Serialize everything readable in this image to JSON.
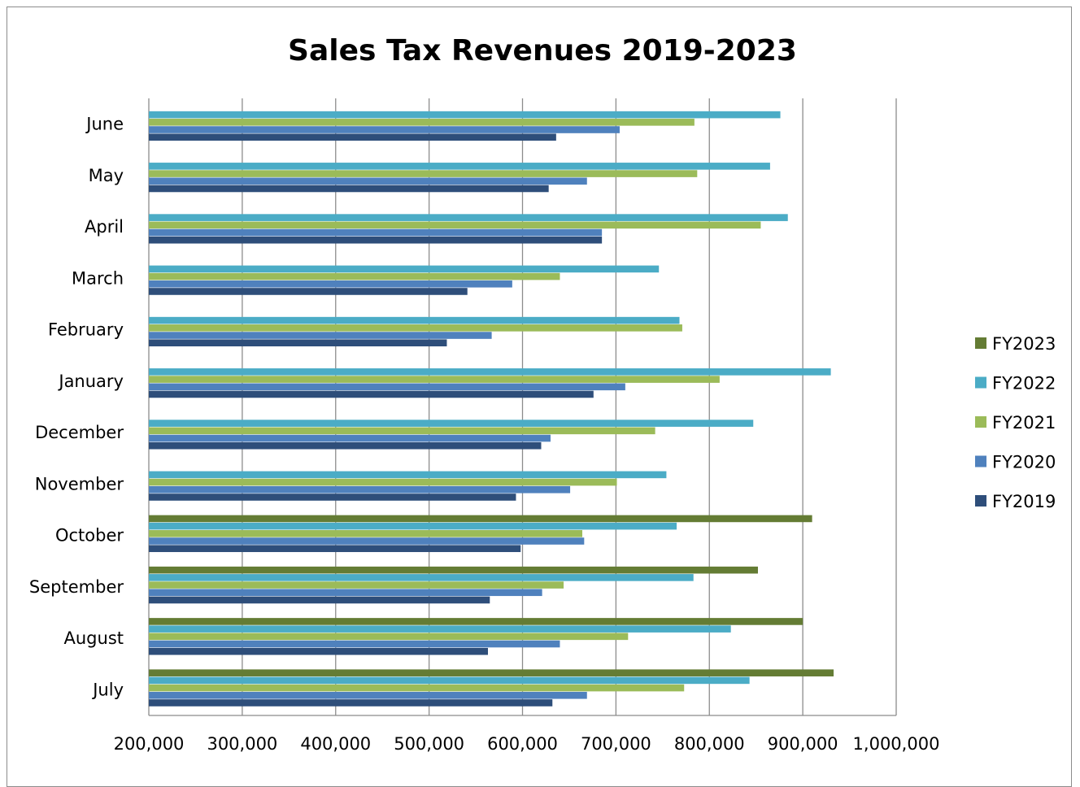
{
  "chart_data": {
    "type": "bar",
    "orientation": "horizontal",
    "title": "Sales Tax Revenues 2019-2023",
    "categories": [
      "July",
      "August",
      "September",
      "October",
      "November",
      "December",
      "January",
      "February",
      "March",
      "April",
      "May",
      "June"
    ],
    "xlim": [
      200000,
      1000000
    ],
    "xticks": [
      "200,000",
      "300,000",
      "400,000",
      "500,000",
      "600,000",
      "700,000",
      "800,000",
      "900,000",
      "1,000,000"
    ],
    "xtick_values": [
      200000,
      300000,
      400000,
      500000,
      600000,
      700000,
      800000,
      900000,
      1000000
    ],
    "grid": true,
    "legend_position": "right",
    "series": [
      {
        "name": "FY2019",
        "color": "#2E4E7A",
        "values": [
          632000,
          563000,
          565000,
          598000,
          593000,
          620000,
          676000,
          519000,
          541000,
          685000,
          628000,
          636000
        ]
      },
      {
        "name": "FY2020",
        "color": "#4F81BD",
        "values": [
          669000,
          640000,
          621000,
          666000,
          651000,
          630000,
          710000,
          567000,
          589000,
          685000,
          669000,
          704000
        ]
      },
      {
        "name": "FY2021",
        "color": "#9BBB59",
        "values": [
          773000,
          713000,
          644000,
          664000,
          701000,
          742000,
          811000,
          771000,
          640000,
          855000,
          787000,
          784000
        ]
      },
      {
        "name": "FY2022",
        "color": "#4BACC6",
        "values": [
          843000,
          823000,
          783000,
          765000,
          754000,
          847000,
          930000,
          768000,
          746000,
          884000,
          865000,
          876000
        ]
      },
      {
        "name": "FY2023",
        "color": "#647C34",
        "values": [
          933000,
          900000,
          852000,
          910000,
          null,
          null,
          null,
          null,
          null,
          null,
          null,
          null
        ]
      }
    ]
  }
}
